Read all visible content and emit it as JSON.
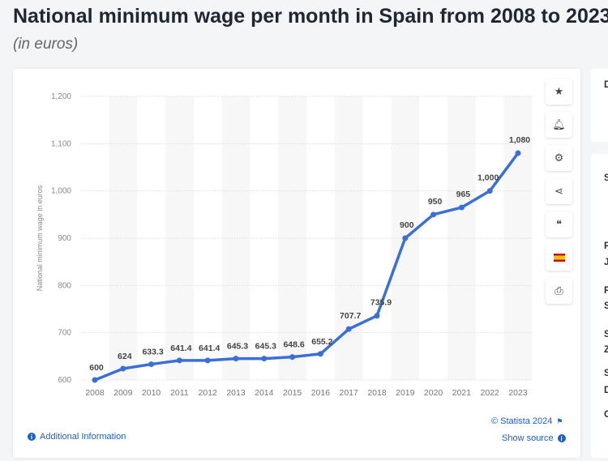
{
  "title": "National minimum wage per month in Spain from 2008 to 2023",
  "subtitle": "(in euros)",
  "chart_data": {
    "type": "line",
    "ylabel": "National minimum wage in euros",
    "x": [
      "2008",
      "2009",
      "2010",
      "2011",
      "2012",
      "2013",
      "2014",
      "2015",
      "2016",
      "2017",
      "2018",
      "2019",
      "2020",
      "2021",
      "2022",
      "2023"
    ],
    "values": [
      600,
      624,
      633.3,
      641.4,
      641.4,
      645.3,
      645.3,
      648.6,
      655.2,
      707.7,
      735.9,
      900,
      950,
      965,
      1000,
      1080
    ],
    "labels": [
      "600",
      "624",
      "633.3",
      "641.4",
      "641.4",
      "645.3",
      "645.3",
      "648.6",
      "655.2",
      "707.7",
      "735.9",
      "900",
      "950",
      "965",
      "1,000",
      "1,080"
    ],
    "ylim": [
      600,
      1200
    ],
    "yticks": [
      600,
      700,
      800,
      900,
      1000,
      1100,
      1200
    ],
    "ytick_labels": [
      "600",
      "700",
      "800",
      "900",
      "1,000",
      "1,100",
      "1,200"
    ],
    "grid": true,
    "color": "#3b6fd8"
  },
  "toolbar": [
    "star-icon",
    "bell-icon",
    "gear-icon",
    "share-icon",
    "quote-icon",
    "spain-flag-icon",
    "print-icon"
  ],
  "footer": {
    "copyright": "© Statista 2024",
    "additional": "Additional Information",
    "source": "Show source"
  },
  "side_letters": [
    "D",
    "S",
    "F",
    "J",
    "F",
    "S",
    "S",
    "Z",
    "S",
    "D",
    "C"
  ]
}
